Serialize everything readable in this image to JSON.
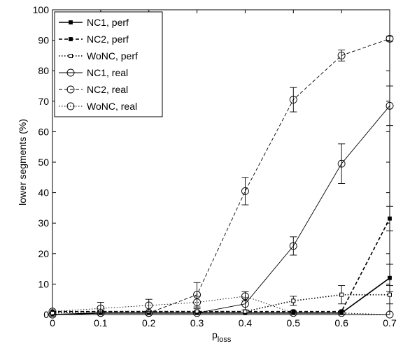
{
  "chart_data": {
    "type": "line",
    "xlabel": "p",
    "xlabel_sub": "loss",
    "ylabel": "lower segments (%)",
    "xlim": [
      0,
      0.7
    ],
    "ylim": [
      0,
      100
    ],
    "x_ticks": [
      "0",
      "0.1",
      "0.2",
      "0.3",
      "0.4",
      "0.5",
      "0.6",
      "0.7"
    ],
    "y_ticks": [
      "0",
      "10",
      "20",
      "30",
      "40",
      "50",
      "60",
      "70",
      "80",
      "90",
      "100"
    ],
    "x": [
      0,
      0.1,
      0.2,
      0.3,
      0.4,
      0.5,
      0.6,
      0.7
    ],
    "legend_position": "top-left",
    "series": [
      {
        "name": "NC1, perf",
        "line": "solid",
        "marker": "square-filled",
        "values": [
          0,
          0.5,
          0.5,
          0.5,
          0.5,
          0.5,
          0.5,
          12
        ],
        "errors": [
          0,
          0,
          0,
          0,
          0,
          0,
          0,
          4.5
        ]
      },
      {
        "name": "NC2, perf",
        "line": "dashed",
        "marker": "square-filled",
        "values": [
          1,
          1,
          1,
          1,
          1,
          1,
          1,
          31.5
        ],
        "errors": [
          0,
          0,
          0,
          0,
          0,
          0,
          0,
          4
        ]
      },
      {
        "name": "WoNC, perf",
        "line": "dotted",
        "marker": "square-open",
        "values": [
          0.5,
          1,
          1,
          1,
          1,
          4.5,
          6.5,
          6.5
        ],
        "errors": [
          0,
          0,
          0,
          0,
          0,
          1.5,
          3,
          3
        ]
      },
      {
        "name": "NC1, real",
        "line": "solid",
        "marker": "circle",
        "values": [
          0,
          0.5,
          0.5,
          0.5,
          3.5,
          22.5,
          49.5,
          68.5
        ],
        "errors": [
          0,
          0,
          0,
          0,
          2,
          3,
          6.5,
          6.5
        ]
      },
      {
        "name": "NC2, real",
        "line": "dashed",
        "marker": "circle",
        "values": [
          0,
          0.5,
          0.5,
          6.5,
          40.5,
          70.5,
          85,
          90.5
        ],
        "errors": [
          0,
          0,
          0,
          4,
          4.5,
          4,
          1.8,
          0.8
        ]
      },
      {
        "name": "WoNC, real",
        "line": "dotted",
        "marker": "circle",
        "values": [
          1,
          2,
          3,
          4,
          6,
          0.5,
          0.5,
          0
        ],
        "errors": [
          0,
          2,
          2,
          2,
          1.5,
          0,
          0,
          0
        ]
      }
    ]
  }
}
